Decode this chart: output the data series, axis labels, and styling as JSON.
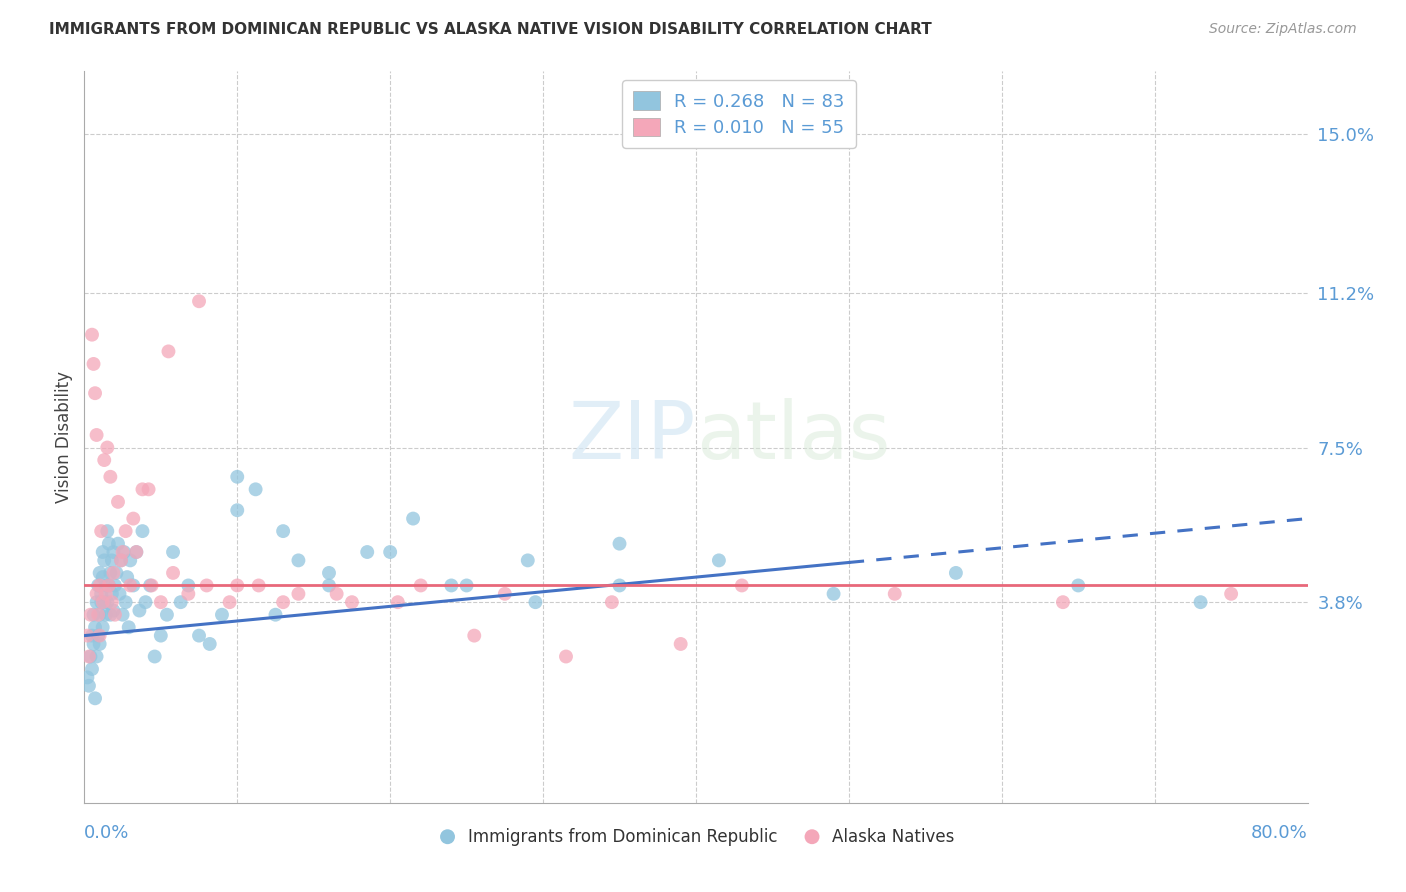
{
  "title": "IMMIGRANTS FROM DOMINICAN REPUBLIC VS ALASKA NATIVE VISION DISABILITY CORRELATION CHART",
  "source": "Source: ZipAtlas.com",
  "ylabel": "Vision Disability",
  "xmin": 0.0,
  "xmax": 0.8,
  "ymin": -0.01,
  "ymax": 0.165,
  "color_blue": "#92C5DE",
  "color_pink": "#F4A7B9",
  "color_blue_line": "#4472C4",
  "color_pink_line": "#E8687A",
  "color_axis_label": "#5B9BD5",
  "watermark_color": "#D5E8F5",
  "grid_color": "#CCCCCC",
  "blue_scatter_x": [
    0.002,
    0.003,
    0.004,
    0.005,
    0.005,
    0.006,
    0.006,
    0.007,
    0.007,
    0.008,
    0.008,
    0.009,
    0.009,
    0.01,
    0.01,
    0.01,
    0.011,
    0.011,
    0.012,
    0.012,
    0.012,
    0.013,
    0.013,
    0.014,
    0.014,
    0.015,
    0.015,
    0.016,
    0.016,
    0.017,
    0.017,
    0.018,
    0.018,
    0.019,
    0.019,
    0.02,
    0.021,
    0.022,
    0.023,
    0.024,
    0.025,
    0.026,
    0.027,
    0.028,
    0.029,
    0.03,
    0.032,
    0.034,
    0.036,
    0.038,
    0.04,
    0.043,
    0.046,
    0.05,
    0.054,
    0.058,
    0.063,
    0.068,
    0.075,
    0.082,
    0.09,
    0.1,
    0.112,
    0.125,
    0.14,
    0.16,
    0.185,
    0.215,
    0.25,
    0.295,
    0.35,
    0.415,
    0.49,
    0.57,
    0.65,
    0.73,
    0.1,
    0.13,
    0.16,
    0.2,
    0.24,
    0.29,
    0.35
  ],
  "blue_scatter_y": [
    0.02,
    0.018,
    0.025,
    0.022,
    0.03,
    0.028,
    0.035,
    0.015,
    0.032,
    0.038,
    0.025,
    0.042,
    0.03,
    0.045,
    0.035,
    0.028,
    0.04,
    0.038,
    0.05,
    0.032,
    0.044,
    0.038,
    0.048,
    0.035,
    0.042,
    0.055,
    0.038,
    0.052,
    0.042,
    0.045,
    0.035,
    0.048,
    0.04,
    0.036,
    0.05,
    0.042,
    0.045,
    0.052,
    0.04,
    0.048,
    0.035,
    0.05,
    0.038,
    0.044,
    0.032,
    0.048,
    0.042,
    0.05,
    0.036,
    0.055,
    0.038,
    0.042,
    0.025,
    0.03,
    0.035,
    0.05,
    0.038,
    0.042,
    0.03,
    0.028,
    0.035,
    0.068,
    0.065,
    0.035,
    0.048,
    0.042,
    0.05,
    0.058,
    0.042,
    0.038,
    0.042,
    0.048,
    0.04,
    0.045,
    0.042,
    0.038,
    0.06,
    0.055,
    0.045,
    0.05,
    0.042,
    0.048,
    0.052
  ],
  "pink_scatter_x": [
    0.002,
    0.003,
    0.004,
    0.005,
    0.006,
    0.007,
    0.008,
    0.008,
    0.009,
    0.01,
    0.01,
    0.011,
    0.012,
    0.013,
    0.014,
    0.015,
    0.016,
    0.017,
    0.018,
    0.019,
    0.02,
    0.022,
    0.024,
    0.027,
    0.03,
    0.034,
    0.038,
    0.044,
    0.05,
    0.058,
    0.068,
    0.08,
    0.095,
    0.114,
    0.14,
    0.175,
    0.22,
    0.275,
    0.345,
    0.43,
    0.53,
    0.64,
    0.75,
    0.1,
    0.13,
    0.165,
    0.205,
    0.255,
    0.315,
    0.39,
    0.075,
    0.055,
    0.042,
    0.032,
    0.025
  ],
  "pink_scatter_y": [
    0.03,
    0.025,
    0.035,
    0.102,
    0.095,
    0.088,
    0.04,
    0.078,
    0.035,
    0.042,
    0.03,
    0.055,
    0.038,
    0.072,
    0.04,
    0.075,
    0.042,
    0.068,
    0.038,
    0.045,
    0.035,
    0.062,
    0.048,
    0.055,
    0.042,
    0.05,
    0.065,
    0.042,
    0.038,
    0.045,
    0.04,
    0.042,
    0.038,
    0.042,
    0.04,
    0.038,
    0.042,
    0.04,
    0.038,
    0.042,
    0.04,
    0.038,
    0.04,
    0.042,
    0.038,
    0.04,
    0.038,
    0.03,
    0.025,
    0.028,
    0.11,
    0.098,
    0.065,
    0.058,
    0.05
  ],
  "blue_trend_y_start": 0.03,
  "blue_trend_y_end": 0.058,
  "blue_trend_solid_end": 0.5,
  "pink_trend_y": 0.042,
  "ytick_positions": [
    0.038,
    0.075,
    0.112,
    0.15
  ],
  "ytick_labels": [
    "3.8%",
    "7.5%",
    "11.2%",
    "15.0%"
  ]
}
